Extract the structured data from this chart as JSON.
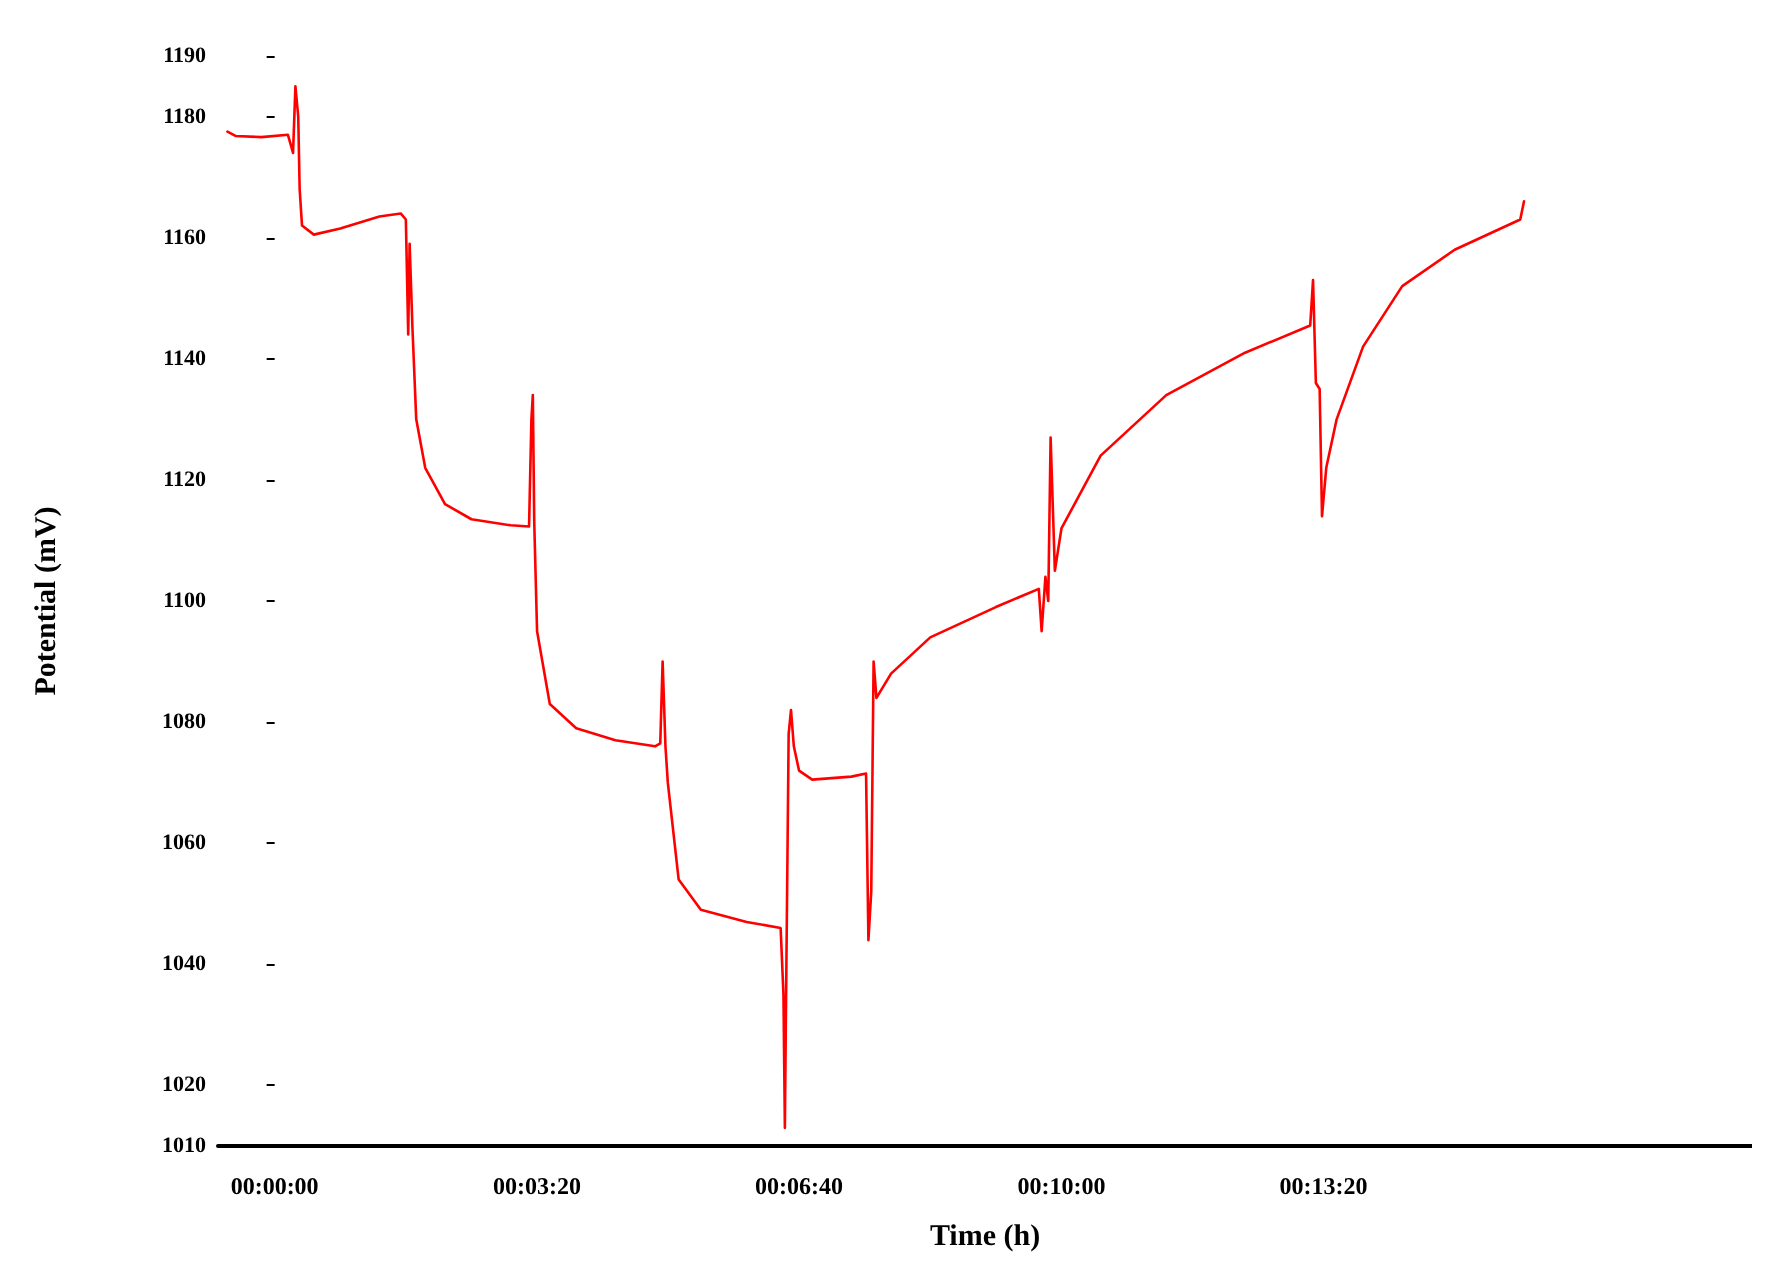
{
  "chart_data": {
    "type": "line",
    "xlabel": "Time (h)",
    "ylabel": "Potential (mV)",
    "x": [
      -0.01,
      -0.0083,
      -0.0028,
      0.0028,
      0.0039,
      0.0044,
      0.005,
      0.0053,
      0.0058,
      0.0083,
      0.0139,
      0.0222,
      0.0267,
      0.0278,
      0.0283,
      0.0286,
      0.0292,
      0.03,
      0.0319,
      0.0361,
      0.0417,
      0.05,
      0.0539,
      0.0544,
      0.0547,
      0.055,
      0.0556,
      0.0583,
      0.0639,
      0.0722,
      0.0806,
      0.0817,
      0.0822,
      0.0828,
      0.0833,
      0.0856,
      0.0903,
      0.1,
      0.1072,
      0.1078,
      0.1081,
      0.1083,
      0.1089,
      0.1094,
      0.11,
      0.1111,
      0.1139,
      0.1222,
      0.1253,
      0.1258,
      0.1264,
      0.1269,
      0.1275,
      0.1306,
      0.1389,
      0.1528,
      0.1619,
      0.1625,
      0.1633,
      0.1639,
      0.1644,
      0.1653,
      0.1667,
      0.175,
      0.1889,
      0.2056,
      0.2194,
      0.22,
      0.2206,
      0.2214,
      0.2219,
      0.2228,
      0.225,
      0.2306,
      0.2389,
      0.25,
      0.2639,
      0.2647
    ],
    "series": [
      {
        "color": "#ff0000",
        "values": [
          1177.5,
          1176.8,
          1176.6,
          1177,
          1174,
          1185,
          1180,
          1168,
          1162,
          1160.5,
          1161.5,
          1163.5,
          1164,
          1163,
          1144,
          1159,
          1145,
          1130,
          1122,
          1116,
          1113.5,
          1112.5,
          1112.3,
          1130,
          1134,
          1113,
          1095,
          1083,
          1079,
          1077,
          1076,
          1076.5,
          1090,
          1076,
          1070,
          1054,
          1049,
          1047,
          1046,
          1035,
          1013,
          1030,
          1078,
          1082,
          1076,
          1072,
          1070.5,
          1071,
          1071.5,
          1044,
          1052,
          1090,
          1084,
          1088,
          1094,
          1099,
          1102,
          1095,
          1104,
          1100,
          1127,
          1105,
          1112,
          1124,
          1134,
          1141,
          1145.5,
          1153,
          1136,
          1135,
          1114,
          1122,
          1130,
          1142,
          1152,
          1158,
          1163,
          1166
        ]
      }
    ],
    "xlim": [
      -0.012,
      0.313
    ],
    "xticks": [
      {
        "value": 0,
        "label": "00:00:00"
      },
      {
        "value": 0.0556,
        "label": "00:03:20"
      },
      {
        "value": 0.1111,
        "label": "00:06:40"
      },
      {
        "value": 0.1667,
        "label": "00:10:00"
      },
      {
        "value": 0.2222,
        "label": "00:13:20"
      }
    ],
    "ylim": [
      1010,
      1190
    ],
    "yticks": [
      1010,
      1020,
      1040,
      1060,
      1080,
      1100,
      1120,
      1140,
      1160,
      1180,
      1190
    ],
    "grid": false,
    "marker": "none",
    "line_style": "solid"
  }
}
